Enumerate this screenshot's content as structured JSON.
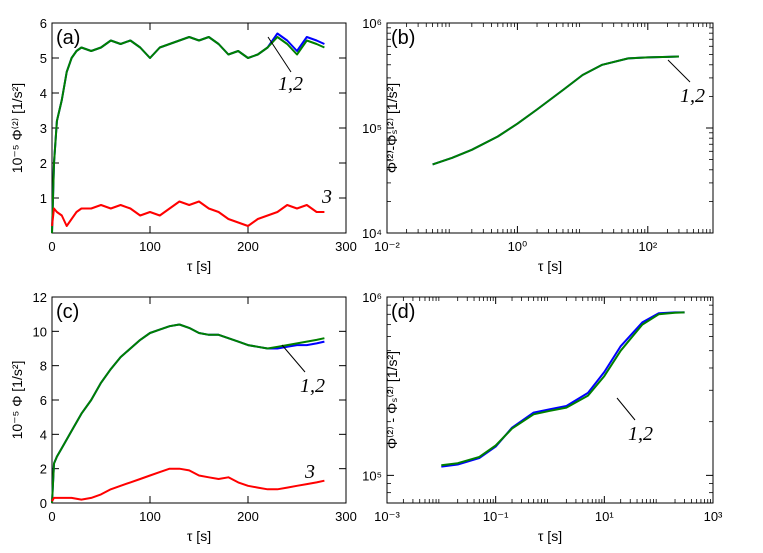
{
  "figure": {
    "title": ""
  },
  "chart_data": [
    {
      "type": "line",
      "panel_label": "(a)",
      "xlabel": "τ [s]",
      "ylabel": "10⁻⁵ Φ⁽²⁾ [1/s²]",
      "xscale": "linear",
      "yscale": "linear",
      "xlim": [
        0,
        300
      ],
      "ylim": [
        0,
        6
      ],
      "xticks": [
        0,
        100,
        200,
        300
      ],
      "xtick_labels": [
        "0",
        "100",
        "200",
        "300"
      ],
      "yticks": [
        1,
        2,
        3,
        4,
        5,
        6
      ],
      "ytick_labels": [
        "1",
        "2",
        "3",
        "4",
        "5",
        "6"
      ],
      "x": [
        0,
        2,
        5,
        10,
        15,
        20,
        25,
        30,
        40,
        50,
        60,
        70,
        80,
        90,
        100,
        110,
        120,
        130,
        140,
        150,
        160,
        170,
        180,
        190,
        200,
        210,
        220,
        230,
        240,
        250,
        260,
        270,
        278
      ],
      "series": [
        {
          "name": "1",
          "color": "#0000ff",
          "values": [
            0,
            2.0,
            3.2,
            3.8,
            4.6,
            5.0,
            5.2,
            5.3,
            5.2,
            5.3,
            5.5,
            5.4,
            5.5,
            5.3,
            5.0,
            5.3,
            5.4,
            5.5,
            5.6,
            5.5,
            5.6,
            5.4,
            5.1,
            5.2,
            5.0,
            5.1,
            5.3,
            5.7,
            5.5,
            5.2,
            5.6,
            5.5,
            5.4
          ]
        },
        {
          "name": "2",
          "color": "#008000",
          "values": [
            0,
            2.0,
            3.2,
            3.8,
            4.6,
            5.0,
            5.2,
            5.3,
            5.2,
            5.3,
            5.5,
            5.4,
            5.5,
            5.3,
            5.0,
            5.3,
            5.4,
            5.5,
            5.6,
            5.5,
            5.6,
            5.4,
            5.1,
            5.2,
            5.0,
            5.1,
            5.3,
            5.6,
            5.4,
            5.1,
            5.5,
            5.4,
            5.3
          ]
        },
        {
          "name": "3",
          "color": "#ff0000",
          "values": [
            0.2,
            0.7,
            0.6,
            0.5,
            0.2,
            0.4,
            0.6,
            0.7,
            0.7,
            0.8,
            0.7,
            0.8,
            0.7,
            0.5,
            0.6,
            0.5,
            0.7,
            0.9,
            0.8,
            0.9,
            0.7,
            0.6,
            0.4,
            0.3,
            0.2,
            0.4,
            0.5,
            0.6,
            0.8,
            0.7,
            0.8,
            0.6,
            0.6
          ]
        }
      ],
      "annotations": [
        {
          "text": "1,2"
        },
        {
          "text": "3"
        }
      ]
    },
    {
      "type": "line",
      "panel_label": "(b)",
      "xlabel": "τ [s]",
      "ylabel": "Φ⁽²⁾-Φₛ⁽²⁾ [1/s²]",
      "xscale": "log",
      "yscale": "log",
      "xlim": [
        0.01,
        1000
      ],
      "ylim": [
        10000,
        1000000
      ],
      "xticks": [
        0.01,
        1,
        100
      ],
      "xtick_labels": [
        "10⁻²",
        "10⁰",
        "10²"
      ],
      "yticks": [
        10000,
        100000,
        1000000
      ],
      "ytick_labels": [
        "10⁴",
        "10⁵",
        "10⁶"
      ],
      "x": [
        0.05,
        0.1,
        0.2,
        0.5,
        1,
        2,
        5,
        10,
        20,
        50,
        100,
        200,
        300
      ],
      "series": [
        {
          "name": "1",
          "color": "#0000ff",
          "values": [
            45000,
            52000,
            62000,
            83000,
            110000,
            150000,
            230000,
            320000,
            400000,
            460000,
            470000,
            475000,
            480000
          ]
        },
        {
          "name": "2",
          "color": "#008000",
          "values": [
            45000,
            52000,
            62000,
            83000,
            110000,
            150000,
            230000,
            320000,
            400000,
            460000,
            470000,
            475000,
            480000
          ]
        }
      ],
      "annotations": [
        {
          "text": "1,2"
        }
      ]
    },
    {
      "type": "line",
      "panel_label": "(c)",
      "xlabel": "τ [s]",
      "ylabel": "10⁻⁵ Φ [1/s²]",
      "xscale": "linear",
      "yscale": "linear",
      "xlim": [
        0,
        300
      ],
      "ylim": [
        0,
        12
      ],
      "xticks": [
        0,
        100,
        200,
        300
      ],
      "xtick_labels": [
        "0",
        "100",
        "200",
        "300"
      ],
      "yticks": [
        0,
        2,
        4,
        6,
        8,
        10,
        12
      ],
      "ytick_labels": [
        "0",
        "2",
        "4",
        "6",
        "8",
        "10",
        "12"
      ],
      "x": [
        0,
        2,
        5,
        10,
        20,
        30,
        40,
        50,
        60,
        70,
        80,
        90,
        100,
        110,
        120,
        130,
        140,
        150,
        160,
        170,
        180,
        190,
        200,
        210,
        220,
        230,
        240,
        250,
        260,
        270,
        278
      ],
      "series": [
        {
          "name": "1",
          "color": "#0000ff",
          "values": [
            0,
            2.3,
            2.7,
            3.2,
            4.2,
            5.2,
            6.0,
            7.0,
            7.8,
            8.5,
            9.0,
            9.5,
            9.9,
            10.1,
            10.3,
            10.4,
            10.2,
            9.9,
            9.8,
            9.8,
            9.6,
            9.4,
            9.2,
            9.1,
            9.0,
            9.0,
            9.1,
            9.2,
            9.2,
            9.3,
            9.4
          ]
        },
        {
          "name": "2",
          "color": "#008000",
          "values": [
            0,
            2.3,
            2.7,
            3.2,
            4.2,
            5.2,
            6.0,
            7.0,
            7.8,
            8.5,
            9.0,
            9.5,
            9.9,
            10.1,
            10.3,
            10.4,
            10.2,
            9.9,
            9.8,
            9.8,
            9.6,
            9.4,
            9.2,
            9.1,
            9.0,
            9.1,
            9.2,
            9.3,
            9.4,
            9.5,
            9.6
          ]
        },
        {
          "name": "3",
          "color": "#ff0000",
          "values": [
            0.1,
            0.3,
            0.3,
            0.3,
            0.3,
            0.2,
            0.3,
            0.5,
            0.8,
            1.0,
            1.2,
            1.4,
            1.6,
            1.8,
            2.0,
            2.0,
            1.9,
            1.6,
            1.5,
            1.4,
            1.5,
            1.2,
            1.0,
            0.9,
            0.8,
            0.8,
            0.9,
            1.0,
            1.1,
            1.2,
            1.3
          ]
        }
      ],
      "annotations": [
        {
          "text": "1,2"
        },
        {
          "text": "3"
        }
      ]
    },
    {
      "type": "line",
      "panel_label": "(d)",
      "xlabel": "τ [s]",
      "ylabel": "Φ⁽²⁾ - Φₛ⁽²⁾ [1/s²]",
      "xscale": "log",
      "yscale": "log",
      "xlim": [
        0.001,
        1000
      ],
      "ylim": [
        70000,
        1000000
      ],
      "xticks": [
        0.001,
        0.1,
        10,
        1000
      ],
      "xtick_labels": [
        "10⁻³",
        "10⁻¹",
        "10¹",
        "10³"
      ],
      "yticks": [
        100000,
        1000000
      ],
      "ytick_labels": [
        "10⁵",
        "10⁶"
      ],
      "x": [
        0.01,
        0.02,
        0.05,
        0.1,
        0.2,
        0.5,
        1,
        2,
        5,
        10,
        20,
        50,
        100,
        200,
        300
      ],
      "series": [
        {
          "name": "1",
          "color": "#0000ff",
          "values": [
            112000,
            115000,
            125000,
            145000,
            185000,
            225000,
            235000,
            245000,
            290000,
            380000,
            530000,
            720000,
            810000,
            820000,
            820000
          ]
        },
        {
          "name": "2",
          "color": "#008000",
          "values": [
            114000,
            117000,
            127000,
            147000,
            183000,
            220000,
            230000,
            240000,
            280000,
            360000,
            500000,
            700000,
            800000,
            815000,
            820000
          ]
        }
      ],
      "annotations": [
        {
          "text": "1,2"
        }
      ]
    }
  ]
}
